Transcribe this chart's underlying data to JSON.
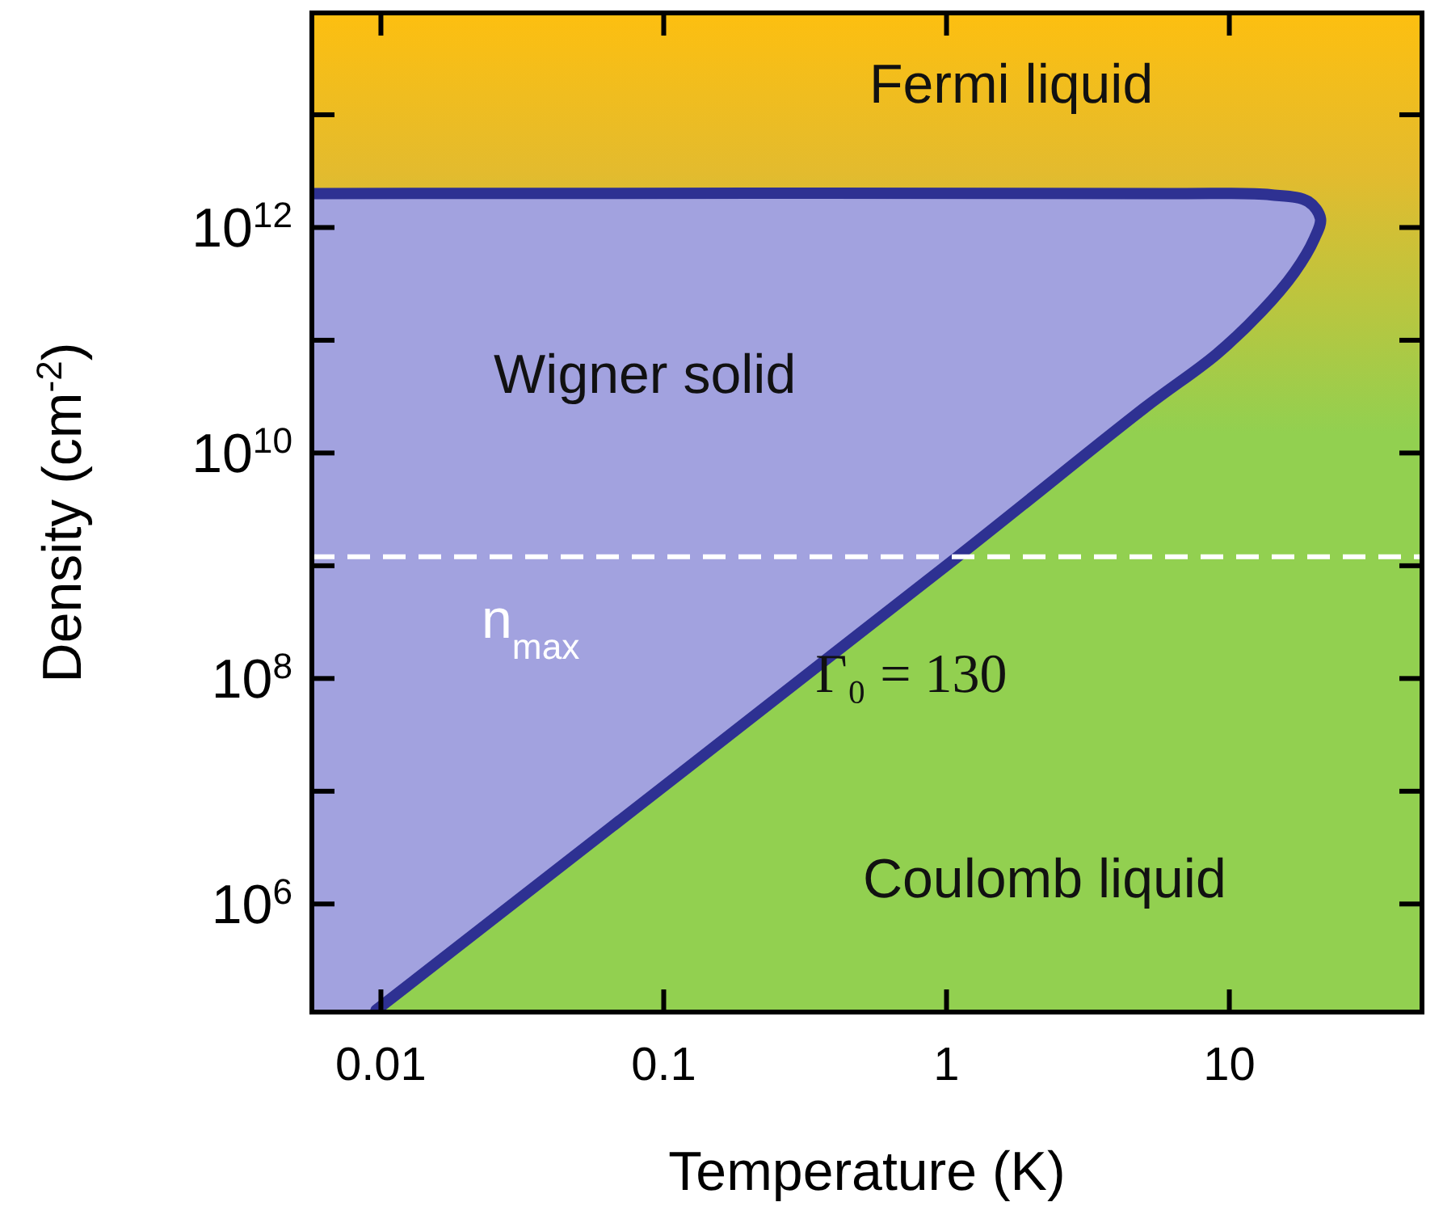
{
  "chart_data": {
    "type": "area",
    "xlabel": "Temperature (K)",
    "ylabel": "Density (cm$^{-2}$)",
    "log": "xy",
    "xlim": [
      0.0057,
      48
    ],
    "ylim": [
      110000,
      80000000000000
    ],
    "xticks": [
      0.01,
      0.1,
      1,
      10
    ],
    "yticks": [
      {
        "value": 1000000,
        "label": "10$^{6}$"
      },
      {
        "value": 10000000,
        "label": null
      },
      {
        "value": 100000000,
        "label": "10$^{8}$"
      },
      {
        "value": 1000000000,
        "label": null
      },
      {
        "value": 10000000000,
        "label": "10$^{10}$"
      },
      {
        "value": 100000000000,
        "label": null
      },
      {
        "value": 1000000000000,
        "label": "10$^{12}$"
      },
      {
        "value": 10000000000000,
        "label": null
      }
    ],
    "grid": false,
    "series": [
      {
        "color": "#2e3192",
        "x": [
          0.0096,
          1.07,
          5,
          9,
          13,
          17,
          20,
          21,
          19,
          14,
          6,
          0.0057
        ],
        "values": [
          114000,
          1150000000,
          25000000000,
          75000000000,
          180000000000,
          400000000000,
          800000000000,
          1200000000000,
          1700000000000,
          1950000000000,
          2000000000000,
          2000000000000
        ]
      }
    ],
    "ref_lines": [
      {
        "axis": "y",
        "value": 1200000000,
        "label": "n$_{max}$",
        "color": "#ffffff",
        "line_style": "dashed"
      }
    ],
    "annotations": [
      "Fermi liquid",
      "Wigner solid",
      "Γ₀ = 130",
      "Coulomb liquid"
    ]
  }
}
